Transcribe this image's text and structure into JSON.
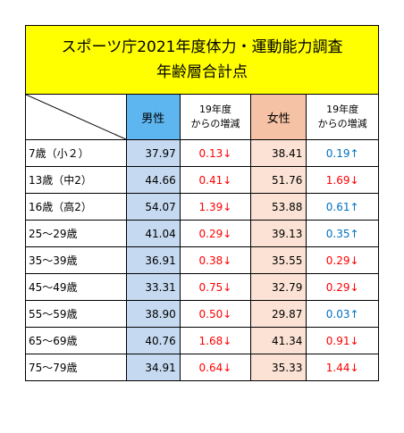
{
  "title": {
    "line1": "スポーツ庁2021年度体力・運動能力調査",
    "line2": "年齢層合計点"
  },
  "headers": {
    "male": "男性",
    "male_diff_line1": "19年度",
    "male_diff_line2": "からの増減",
    "female": "女性",
    "female_diff_line1": "19年度",
    "female_diff_line2": "からの増減"
  },
  "colors": {
    "title_bg": "#ffff00",
    "male_header_bg": "#5eb6f0",
    "male_cell_bg": "#c5d9f0",
    "female_header_bg": "#f5c2a5",
    "female_cell_bg": "#fbe2d4",
    "decrease": "#ff0000",
    "increase": "#0070c0"
  },
  "rows": [
    {
      "label": "7歳（小２）",
      "male": "37.97",
      "male_diff": "0.13↓",
      "male_dir": "down",
      "female": "38.41",
      "female_diff": "0.19↑",
      "female_dir": "up"
    },
    {
      "label": "13歳（中2）",
      "male": "44.66",
      "male_diff": "0.41↓",
      "male_dir": "down",
      "female": "51.76",
      "female_diff": "1.69↓",
      "female_dir": "down"
    },
    {
      "label": "16歳（高2）",
      "male": "54.07",
      "male_diff": "1.39↓",
      "male_dir": "down",
      "female": "53.88",
      "female_diff": "0.61↑",
      "female_dir": "up"
    },
    {
      "label": "25～29歳",
      "male": "41.04",
      "male_diff": "0.29↓",
      "male_dir": "down",
      "female": "39.13",
      "female_diff": "0.35↑",
      "female_dir": "up"
    },
    {
      "label": "35～39歳",
      "male": "36.91",
      "male_diff": "0.38↓",
      "male_dir": "down",
      "female": "35.55",
      "female_diff": "0.29↓",
      "female_dir": "down"
    },
    {
      "label": "45～49歳",
      "male": "33.31",
      "male_diff": "0.75↓",
      "male_dir": "down",
      "female": "32.79",
      "female_diff": "0.29↓",
      "female_dir": "down"
    },
    {
      "label": "55～59歳",
      "male": "38.90",
      "male_diff": "0.50↓",
      "male_dir": "down",
      "female": "29.87",
      "female_diff": "0.03↑",
      "female_dir": "up"
    },
    {
      "label": "65～69歳",
      "male": "40.76",
      "male_diff": "1.68↓",
      "male_dir": "down",
      "female": "41.34",
      "female_diff": "0.91↓",
      "female_dir": "down"
    },
    {
      "label": "75～79歳",
      "male": "34.91",
      "male_diff": "0.64↓",
      "male_dir": "down",
      "female": "35.33",
      "female_diff": "1.44↓",
      "female_dir": "down"
    }
  ]
}
